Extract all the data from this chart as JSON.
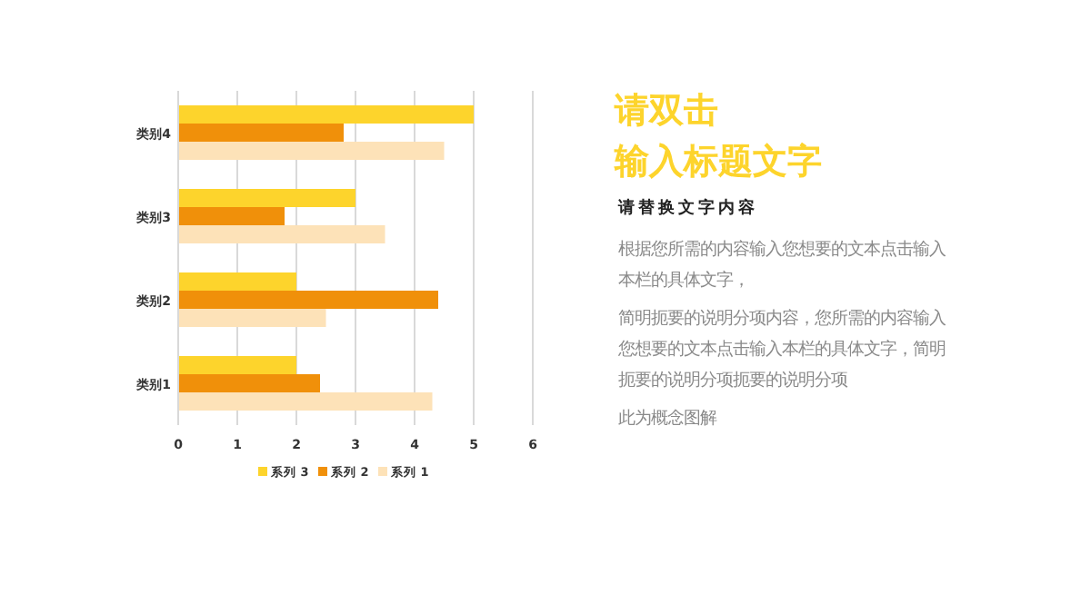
{
  "chart_data": {
    "type": "bar",
    "orientation": "horizontal",
    "title": "请双击输入标题文字",
    "subtitle": "请替换文字内容",
    "categories": [
      "类别4",
      "类别3",
      "类别2",
      "类别1"
    ],
    "series": [
      {
        "name": "系列 1",
        "color": "#fde2b8",
        "values": [
          4.5,
          3.5,
          2.5,
          4.3
        ]
      },
      {
        "name": "系列 2",
        "color": "#f0900a",
        "values": [
          2.8,
          1.8,
          4.4,
          2.4
        ]
      },
      {
        "name": "系列 3",
        "color": "#fdd42c",
        "values": [
          5,
          3,
          2,
          2
        ]
      }
    ],
    "xlim": [
      0,
      6
    ],
    "xticks": [
      0,
      1,
      2,
      3,
      4,
      5,
      6
    ],
    "grid": "x",
    "legend": "bottom",
    "annotations": [
      "根据您所需的内容输入您想要的文本点击输入本栏的具体文字，",
      "简明扼要的说明分项内容，您所需的内容输入您想要的文本点击输入本栏的具体文字，简明扼要的说明分项扼要的说明分项",
      "此为概念图解"
    ]
  }
}
